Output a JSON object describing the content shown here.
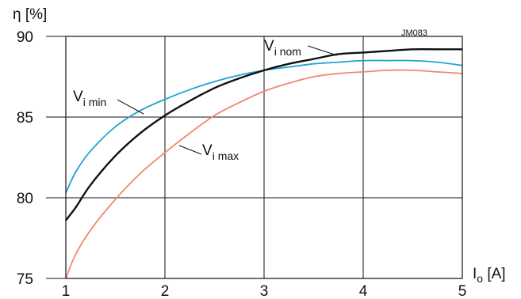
{
  "chart_data": {
    "type": "line",
    "ylabel": "η [%]",
    "xlabel_main": "I",
    "xlabel_sub": "o",
    "xlabel_unit": " [A]",
    "code_label": "JM083",
    "xlim": [
      1,
      5
    ],
    "ylim": [
      75,
      90
    ],
    "xticks": [
      "1",
      "2",
      "3",
      "4",
      "5"
    ],
    "yticks": [
      "75",
      "80",
      "85",
      "90"
    ],
    "grid": true,
    "series": [
      {
        "name_main": "V",
        "name_sub": "i min",
        "color": "#1fa3d6",
        "x": [
          1.0,
          1.1,
          1.25,
          1.5,
          1.75,
          2.0,
          2.25,
          2.5,
          2.75,
          3.0,
          3.25,
          3.5,
          3.75,
          4.0,
          4.25,
          4.5,
          4.75,
          5.0
        ],
        "y": [
          80.3,
          81.6,
          82.9,
          84.4,
          85.4,
          86.1,
          86.7,
          87.2,
          87.6,
          87.9,
          88.1,
          88.3,
          88.4,
          88.5,
          88.5,
          88.5,
          88.4,
          88.2
        ]
      },
      {
        "name_main": "V",
        "name_sub": "i nom",
        "color": "#111111",
        "x": [
          1.0,
          1.1,
          1.25,
          1.5,
          1.75,
          2.0,
          2.25,
          2.5,
          2.75,
          3.0,
          3.25,
          3.5,
          3.75,
          4.0,
          4.25,
          4.5,
          4.75,
          5.0
        ],
        "y": [
          78.6,
          79.4,
          80.8,
          82.6,
          84.0,
          85.1,
          86.0,
          86.8,
          87.4,
          87.9,
          88.3,
          88.6,
          88.9,
          89.0,
          89.1,
          89.2,
          89.2,
          89.2
        ]
      },
      {
        "name_main": "V",
        "name_sub": "i max",
        "color": "#f08870",
        "x": [
          1.0,
          1.1,
          1.25,
          1.5,
          1.75,
          2.0,
          2.25,
          2.5,
          2.75,
          3.0,
          3.25,
          3.5,
          3.75,
          4.0,
          4.25,
          4.5,
          4.75,
          5.0
        ],
        "y": [
          75.0,
          76.5,
          78.0,
          79.9,
          81.5,
          82.8,
          84.0,
          85.1,
          85.9,
          86.6,
          87.1,
          87.5,
          87.7,
          87.8,
          87.9,
          87.9,
          87.8,
          87.7
        ]
      }
    ]
  }
}
